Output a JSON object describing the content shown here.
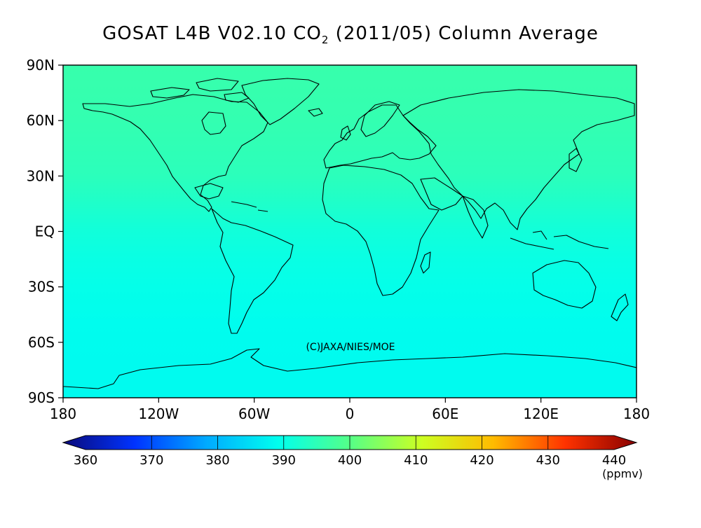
{
  "title": {
    "prefix": "GOSAT L4B V02.10 CO",
    "subscript": "2",
    "suffix": " (2011/05) Column Average"
  },
  "map": {
    "lat_ticks": [
      {
        "lat": 90,
        "label": "90N"
      },
      {
        "lat": 60,
        "label": "60N"
      },
      {
        "lat": 30,
        "label": "30N"
      },
      {
        "lat": 0,
        "label": "EQ"
      },
      {
        "lat": -30,
        "label": "30S"
      },
      {
        "lat": -60,
        "label": "60S"
      },
      {
        "lat": -90,
        "label": "90S"
      }
    ],
    "lon_ticks": [
      {
        "lon": -180,
        "label": "180"
      },
      {
        "lon": -120,
        "label": "120W"
      },
      {
        "lon": -60,
        "label": "60W"
      },
      {
        "lon": 0,
        "label": "0"
      },
      {
        "lon": 60,
        "label": "60E"
      },
      {
        "lon": 120,
        "label": "120E"
      },
      {
        "lon": 180,
        "label": "180"
      }
    ],
    "lon_range": [
      -180,
      180
    ],
    "lat_range": [
      -90,
      90
    ],
    "copyright": "(C)JAXA/NIES/MOE",
    "field": [
      {
        "lat": 90,
        "value": 396.5
      },
      {
        "lat": 60,
        "value": 396.0
      },
      {
        "lat": 30,
        "value": 395.0
      },
      {
        "lat": 15,
        "value": 393.5
      },
      {
        "lat": 0,
        "value": 392.0
      },
      {
        "lat": -15,
        "value": 391.0
      },
      {
        "lat": -30,
        "value": 390.5
      },
      {
        "lat": -50,
        "value": 389.8
      },
      {
        "lat": -70,
        "value": 389.5
      },
      {
        "lat": -90,
        "value": 389.5
      }
    ],
    "colors": {
      "coastline": "#000000",
      "frame": "#000000"
    }
  },
  "colorbar": {
    "min": 360,
    "max": 440,
    "ticks": [
      360,
      370,
      380,
      390,
      400,
      410,
      420,
      430,
      440
    ],
    "unit": "(ppmv)",
    "stops": [
      "#0a0a7a",
      "#0033ff",
      "#00aaff",
      "#00ffee",
      "#55ff88",
      "#ccff22",
      "#ffbb00",
      "#ff3300",
      "#880000"
    ]
  }
}
